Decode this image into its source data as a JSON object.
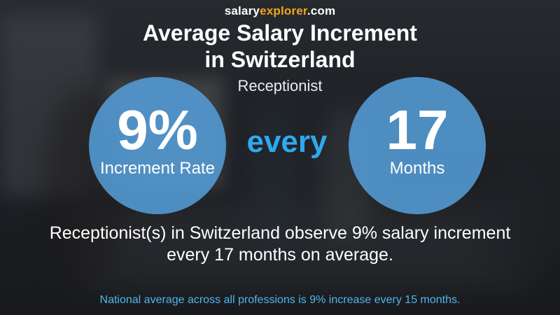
{
  "brand": {
    "salary": "salary",
    "explorer": "explorer",
    "tld": ".com"
  },
  "title_line1": "Average Salary Increment",
  "title_line2": "in Switzerland",
  "subtitle": "Receptionist",
  "increment": {
    "value": "9%",
    "label": "Increment Rate"
  },
  "connector": "every",
  "period": {
    "value": "17",
    "label": "Months"
  },
  "summary_line1": "Receptionist(s) in Switzerland observe 9% salary increment",
  "summary_line2": "every 17 months on average.",
  "footer": "National average across all professions is 9% increase every 15 months.",
  "colors": {
    "circle": "#549cd6",
    "accent_blue": "#2ea9f0",
    "brand_orange": "#f6a31b",
    "footer_text": "#4fb6ea"
  }
}
